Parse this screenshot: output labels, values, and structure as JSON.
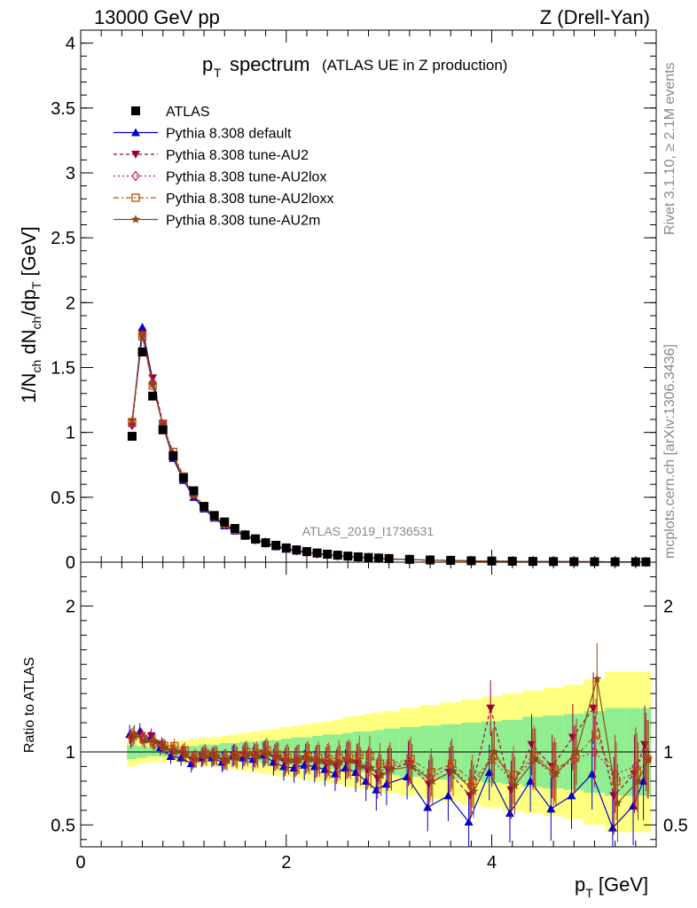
{
  "header": {
    "energy": "13000 GeV pp",
    "process": "Z (Drell-Yan)",
    "title_main": "p",
    "title_sub": "T",
    "title_word": "spectrum",
    "title_small": "(ATLAS UE in Z production)",
    "analysis": "ATLAS_2019_I1736531",
    "side_rivet": "Rivet 3.1.10, ≥ 2.1M events",
    "side_mcplots": "mcplots.cern.ch [arXiv:1306.3436]"
  },
  "axes": {
    "ylabel_main": "1/N_ch dN_ch/dp_T [GeV]",
    "ylabel_ratio": "Ratio to ATLAS",
    "xlabel": "p_T [GeV]"
  },
  "colors": {
    "atlas": "#000000",
    "default": "#0000cc",
    "au2": "#99003d",
    "au2lox": "#b3204d",
    "au2loxx": "#c04a0a",
    "au2m": "#8b4a14",
    "band_green": "#90ee90",
    "band_yellow": "#ffff80"
  },
  "chart_data": [
    {
      "type": "scatter",
      "panel": "main",
      "xlim": [
        0,
        5.6
      ],
      "ylim": [
        0,
        4.1
      ],
      "xticks": [
        0,
        2,
        4
      ],
      "yticks": [
        0,
        0.5,
        1,
        1.5,
        2,
        2.5,
        3,
        3.5,
        4
      ],
      "ytick_labels": [
        "0",
        "0.5",
        "1",
        "1.5",
        "2",
        "2.5",
        "3",
        "3.5",
        "4"
      ],
      "x": [
        0.5,
        0.6,
        0.7,
        0.8,
        0.9,
        1.0,
        1.1,
        1.2,
        1.3,
        1.4,
        1.5,
        1.6,
        1.7,
        1.8,
        1.9,
        2.0,
        2.1,
        2.2,
        2.3,
        2.4,
        2.5,
        2.6,
        2.7,
        2.8,
        2.9,
        3.0,
        3.2,
        3.4,
        3.6,
        3.8,
        4.0,
        4.2,
        4.4,
        4.6,
        4.8,
        5.0,
        5.2,
        5.4,
        5.5
      ],
      "series": [
        {
          "name": "ATLAS",
          "style": "atlas",
          "values": [
            0.97,
            1.62,
            1.28,
            1.02,
            0.82,
            0.65,
            0.55,
            0.43,
            0.36,
            0.31,
            0.26,
            0.21,
            0.18,
            0.15,
            0.13,
            0.11,
            0.095,
            0.082,
            0.071,
            0.062,
            0.054,
            0.047,
            0.041,
            0.036,
            0.032,
            0.028,
            0.022,
            0.017,
            0.014,
            0.011,
            0.009,
            0.0075,
            0.006,
            0.005,
            0.0042,
            0.0035,
            0.0029,
            0.0024,
            0.0021
          ]
        },
        {
          "name": "Pythia 8.308 default",
          "style": "default",
          "values": [
            1.07,
            1.81,
            1.4,
            1.05,
            0.8,
            0.63,
            0.5,
            0.41,
            0.34,
            0.28,
            0.24,
            0.2,
            0.17,
            0.145,
            0.12,
            0.1,
            0.085,
            0.074,
            0.064,
            0.055,
            0.048,
            0.042,
            0.037,
            0.032,
            0.028,
            0.024,
            0.019,
            0.015,
            0.012,
            0.0095,
            0.0078,
            0.0064,
            0.0052,
            0.0043,
            0.0036,
            0.003,
            0.0025,
            0.0021,
            0.0019
          ]
        },
        {
          "name": "Pythia 8.308 tune-AU2",
          "style": "au2",
          "values": [
            1.05,
            1.76,
            1.42,
            1.07,
            0.82,
            0.64,
            0.51,
            0.42,
            0.35,
            0.29,
            0.245,
            0.205,
            0.175,
            0.148,
            0.125,
            0.105,
            0.09,
            0.077,
            0.066,
            0.057,
            0.05,
            0.044,
            0.038,
            0.033,
            0.029,
            0.025,
            0.02,
            0.016,
            0.013,
            0.01,
            0.0082,
            0.0067,
            0.0055,
            0.0046,
            0.0038,
            0.0032,
            0.0027,
            0.0023,
            0.002
          ]
        },
        {
          "name": "Pythia 8.308 tune-AU2lox",
          "style": "au2lox",
          "values": [
            1.06,
            1.75,
            1.38,
            1.06,
            0.83,
            0.65,
            0.52,
            0.42,
            0.35,
            0.29,
            0.25,
            0.21,
            0.175,
            0.15,
            0.126,
            0.106,
            0.09,
            0.078,
            0.067,
            0.058,
            0.051,
            0.044,
            0.039,
            0.034,
            0.03,
            0.026,
            0.02,
            0.016,
            0.013,
            0.0105,
            0.0085,
            0.007,
            0.0057,
            0.0047,
            0.0039,
            0.0033,
            0.0028,
            0.0023,
            0.0021
          ]
        },
        {
          "name": "Pythia 8.308 tune-AU2loxx",
          "style": "au2loxx",
          "values": [
            1.08,
            1.74,
            1.36,
            1.06,
            0.85,
            0.66,
            0.53,
            0.43,
            0.355,
            0.295,
            0.25,
            0.21,
            0.178,
            0.152,
            0.128,
            0.108,
            0.092,
            0.079,
            0.068,
            0.059,
            0.052,
            0.045,
            0.04,
            0.035,
            0.03,
            0.026,
            0.021,
            0.016,
            0.013,
            0.0106,
            0.0087,
            0.0071,
            0.0058,
            0.0048,
            0.004,
            0.0034,
            0.0028,
            0.0024,
            0.0021
          ]
        },
        {
          "name": "Pythia 8.308 tune-AU2m",
          "style": "au2m",
          "values": [
            1.09,
            1.75,
            1.37,
            1.05,
            0.82,
            0.64,
            0.52,
            0.42,
            0.35,
            0.29,
            0.245,
            0.205,
            0.175,
            0.148,
            0.126,
            0.106,
            0.09,
            0.078,
            0.067,
            0.058,
            0.05,
            0.044,
            0.038,
            0.034,
            0.029,
            0.025,
            0.02,
            0.016,
            0.013,
            0.0102,
            0.0084,
            0.0069,
            0.0056,
            0.0046,
            0.0038,
            0.0032,
            0.0027,
            0.0023,
            0.002
          ]
        }
      ]
    },
    {
      "type": "line",
      "panel": "ratio",
      "xlim": [
        0,
        5.6
      ],
      "ylim": [
        0.35,
        2.3
      ],
      "xticks": [
        0,
        2,
        4
      ],
      "xtick_labels": [
        "0",
        "2",
        "4"
      ],
      "yticks": [
        0.5,
        1,
        2
      ],
      "ytick_labels": [
        "0.5",
        "1",
        "2"
      ],
      "x": [
        0.5,
        0.6,
        0.7,
        0.8,
        0.9,
        1.0,
        1.1,
        1.2,
        1.3,
        1.4,
        1.5,
        1.6,
        1.7,
        1.8,
        1.9,
        2.0,
        2.1,
        2.2,
        2.3,
        2.4,
        2.5,
        2.6,
        2.7,
        2.8,
        2.9,
        3.0,
        3.2,
        3.4,
        3.6,
        3.8,
        4.0,
        4.2,
        4.4,
        4.6,
        4.8,
        5.0,
        5.2,
        5.4,
        5.5
      ],
      "band_green": [
        0.05,
        0.04,
        0.03,
        0.03,
        0.03,
        0.04,
        0.04,
        0.05,
        0.05,
        0.06,
        0.06,
        0.07,
        0.07,
        0.08,
        0.08,
        0.09,
        0.1,
        0.1,
        0.11,
        0.12,
        0.12,
        0.13,
        0.14,
        0.14,
        0.15,
        0.16,
        0.17,
        0.18,
        0.19,
        0.2,
        0.21,
        0.22,
        0.24,
        0.25,
        0.26,
        0.28,
        0.3,
        0.3,
        0.3
      ],
      "band_yellow": [
        0.1,
        0.08,
        0.07,
        0.07,
        0.07,
        0.08,
        0.09,
        0.1,
        0.1,
        0.11,
        0.12,
        0.13,
        0.14,
        0.15,
        0.16,
        0.17,
        0.18,
        0.19,
        0.2,
        0.21,
        0.22,
        0.24,
        0.25,
        0.26,
        0.27,
        0.28,
        0.3,
        0.32,
        0.34,
        0.36,
        0.38,
        0.4,
        0.42,
        0.44,
        0.46,
        0.5,
        0.55,
        0.55,
        0.55
      ],
      "series": [
        {
          "name": "Pythia 8.308 default",
          "style": "default",
          "values": [
            1.12,
            1.14,
            1.09,
            1.03,
            0.97,
            0.96,
            0.92,
            0.96,
            0.96,
            0.93,
            0.97,
            0.96,
            0.95,
            0.98,
            0.93,
            0.9,
            0.89,
            0.91,
            0.9,
            0.88,
            0.85,
            0.89,
            0.86,
            0.8,
            0.74,
            0.78,
            0.83,
            0.62,
            0.7,
            0.52,
            0.86,
            0.58,
            0.8,
            0.61,
            0.7,
            0.85,
            0.48,
            0.63,
            0.8
          ]
        },
        {
          "name": "Pythia 8.308 tune-AU2",
          "style": "au2",
          "values": [
            1.09,
            1.11,
            1.11,
            1.05,
            1.0,
            0.99,
            0.94,
            0.97,
            0.97,
            0.94,
            0.98,
            0.98,
            0.98,
            0.99,
            0.96,
            0.93,
            0.93,
            0.95,
            0.93,
            0.92,
            0.9,
            0.94,
            0.92,
            0.88,
            0.82,
            0.88,
            0.92,
            0.78,
            0.86,
            0.7,
            1.3,
            0.74,
            1.05,
            0.9,
            1.1,
            1.3,
            0.7,
            0.85,
            1.05
          ]
        },
        {
          "name": "Pythia 8.308 tune-AU2lox",
          "style": "au2lox",
          "values": [
            1.1,
            1.1,
            1.07,
            1.04,
            1.01,
            1.0,
            0.95,
            0.98,
            0.97,
            0.95,
            0.98,
            0.99,
            0.97,
            1.0,
            0.97,
            0.95,
            0.94,
            0.96,
            0.94,
            0.94,
            0.92,
            0.95,
            0.93,
            0.9,
            0.86,
            0.9,
            0.93,
            0.82,
            0.9,
            0.76,
            0.95,
            0.8,
            0.95,
            0.85,
            0.95,
            1.0,
            0.85,
            0.9,
            1.0
          ]
        },
        {
          "name": "Pythia 8.308 tune-AU2loxx",
          "style": "au2loxx",
          "values": [
            1.11,
            1.09,
            1.06,
            1.04,
            1.04,
            1.01,
            0.96,
            0.99,
            0.98,
            0.95,
            0.97,
            1.0,
            0.99,
            1.01,
            0.98,
            0.96,
            0.95,
            0.97,
            0.96,
            0.95,
            0.96,
            0.96,
            0.98,
            0.97,
            0.92,
            0.92,
            0.95,
            0.86,
            0.92,
            0.8,
            0.97,
            0.84,
            0.97,
            0.88,
            0.96,
            1.12,
            0.8,
            0.86,
            0.95
          ]
        },
        {
          "name": "Pythia 8.308 tune-AU2m",
          "style": "au2m",
          "values": [
            1.12,
            1.08,
            1.07,
            1.03,
            1.0,
            0.98,
            0.95,
            0.97,
            0.97,
            0.94,
            0.96,
            0.98,
            0.97,
            0.99,
            0.97,
            0.94,
            0.95,
            0.95,
            0.94,
            0.93,
            0.93,
            0.94,
            0.9,
            0.89,
            0.84,
            0.88,
            0.9,
            0.8,
            0.87,
            0.73,
            1.0,
            0.77,
            0.95,
            0.85,
            1.0,
            1.5,
            0.65,
            0.8,
            0.95
          ]
        }
      ]
    }
  ]
}
